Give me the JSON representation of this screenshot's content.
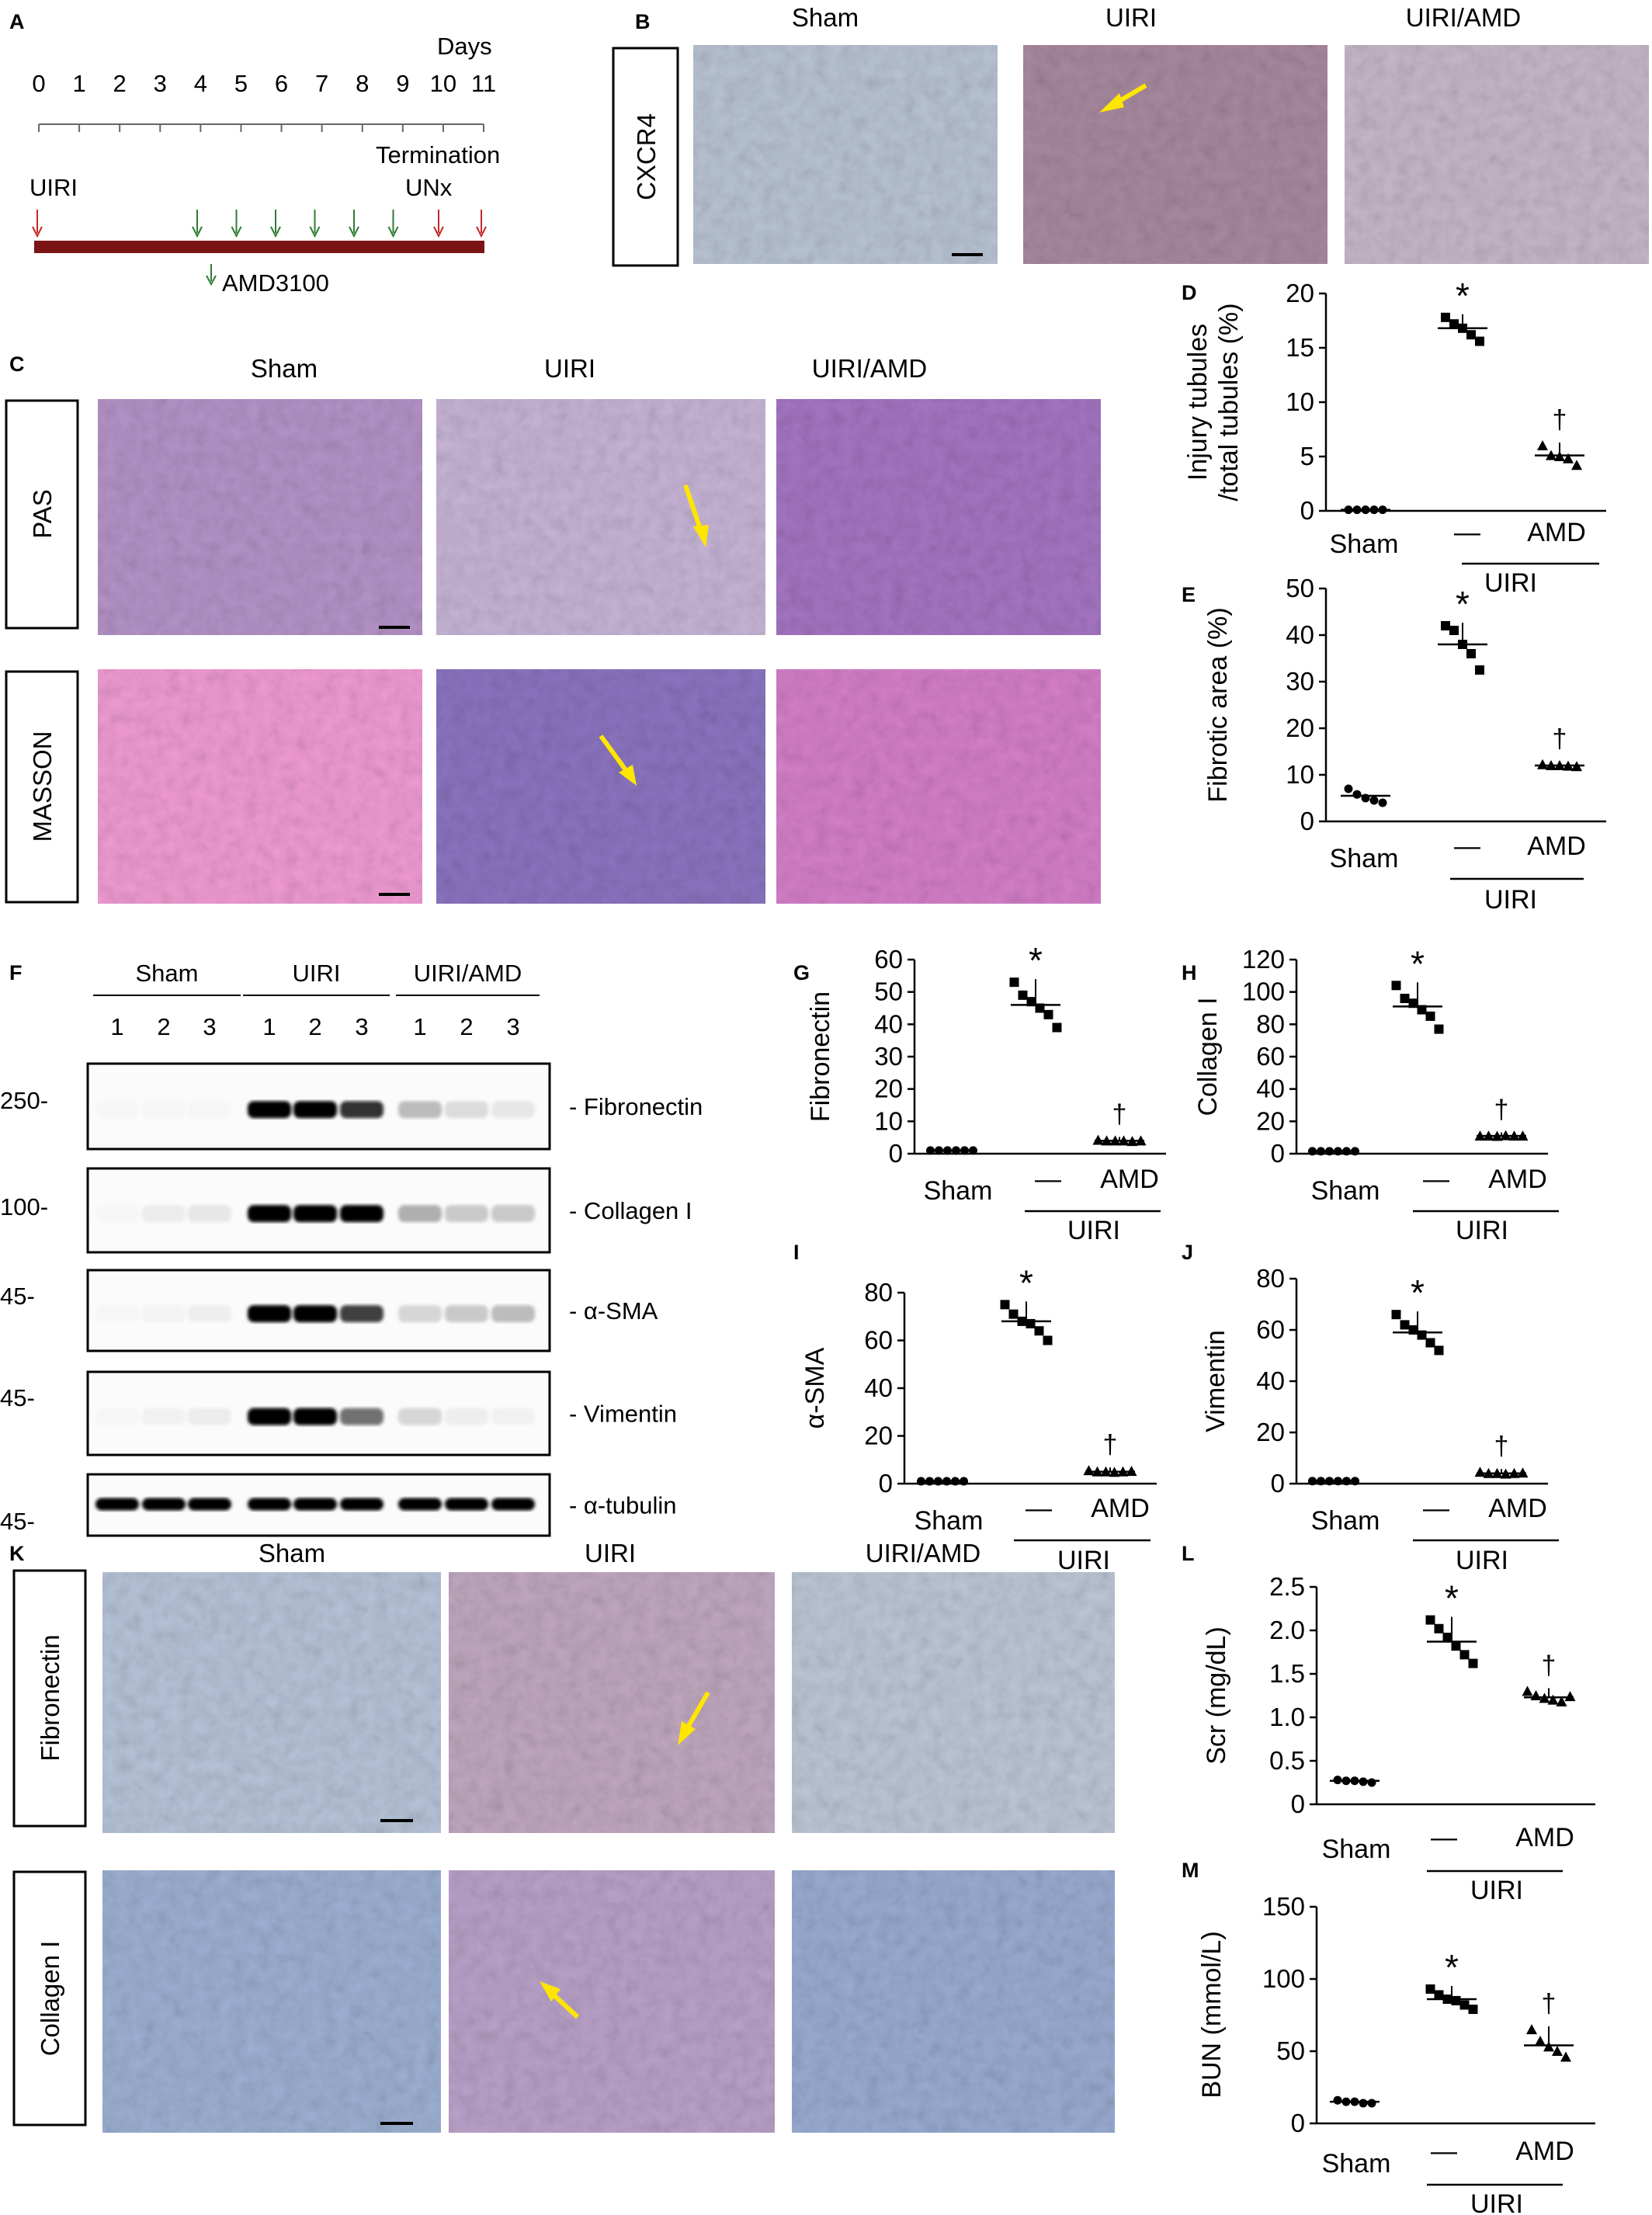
{
  "panel_letters": [
    "A",
    "B",
    "C",
    "D",
    "E",
    "F",
    "G",
    "H",
    "I",
    "J",
    "K",
    "L",
    "M"
  ],
  "panel_a": {
    "days_label": "Days",
    "ticks": [
      "0",
      "1",
      "2",
      "3",
      "4",
      "5",
      "6",
      "7",
      "8",
      "9",
      "10",
      "11"
    ],
    "termination_label": "Termination",
    "uiri_label": "UIRI",
    "unx_label": "UNx",
    "amd_label": "AMD3100",
    "injection_days": [
      4,
      5,
      6,
      7,
      8,
      9
    ]
  },
  "groups": [
    "Sham",
    "UIRI",
    "UIRI/AMD"
  ],
  "panel_b": {
    "row_label": "CXCR4"
  },
  "panel_c": {
    "row_labels": [
      "PAS",
      "MASSON"
    ]
  },
  "panel_k": {
    "row_labels": [
      "Fibronectin",
      "Collagen I"
    ]
  },
  "panel_f": {
    "group_labels": [
      "Sham",
      "UIRI",
      "UIRI/AMD"
    ],
    "lanes": [
      "1",
      "2",
      "3",
      "1",
      "2",
      "3",
      "1",
      "2",
      "3"
    ],
    "markers": [
      "250-",
      "100-",
      "45-",
      "45-",
      "45-"
    ],
    "bands": [
      "- Fibronectin",
      "- Collagen I",
      "- α-SMA",
      "- Vimentin",
      "- α-tubulin"
    ],
    "band_intensity": [
      [
        0.02,
        0.02,
        0.02,
        1.0,
        1.0,
        0.8,
        0.25,
        0.12,
        0.08
      ],
      [
        0.02,
        0.06,
        0.08,
        1.0,
        1.0,
        1.0,
        0.3,
        0.2,
        0.2
      ],
      [
        0.02,
        0.03,
        0.05,
        1.0,
        1.0,
        0.75,
        0.15,
        0.2,
        0.25
      ],
      [
        0.02,
        0.04,
        0.06,
        1.0,
        1.0,
        0.55,
        0.15,
        0.05,
        0.04
      ],
      [
        1.0,
        1.0,
        1.0,
        1.0,
        1.0,
        1.0,
        1.0,
        1.0,
        1.0
      ]
    ]
  },
  "axis_labels": {
    "sham": "Sham",
    "dash": "—",
    "amd": "AMD",
    "uiri": "UIRI",
    "sig_star": "*",
    "sig_dagger": "†"
  },
  "chart_data": [
    {
      "id": "D",
      "type": "scatter",
      "ylabel_lines": [
        "Injury tubules",
        "/total tubules (%)"
      ],
      "ylim": [
        0,
        20
      ],
      "yticks": [
        0,
        5,
        10,
        15,
        20
      ],
      "groups": [
        "Sham",
        "UIRI",
        "UIRI/AMD"
      ],
      "means": [
        0.1,
        16.8,
        5.1
      ],
      "points": [
        [
          0.1,
          0.1,
          0.1,
          0.1,
          0.1
        ],
        [
          17.8,
          17.2,
          16.8,
          16.2,
          15.6
        ],
        [
          6.0,
          5.1,
          5.0,
          4.8,
          4.2
        ]
      ]
    },
    {
      "id": "E",
      "type": "scatter",
      "ylabel_lines": [
        "Fibrotic area (%)"
      ],
      "ylim": [
        0,
        50
      ],
      "yticks": [
        0,
        10,
        20,
        30,
        40,
        50
      ],
      "groups": [
        "Sham",
        "UIRI",
        "UIRI/AMD"
      ],
      "means": [
        5.5,
        38.0,
        12.0
      ],
      "points": [
        [
          7.0,
          5.8,
          5.0,
          4.5,
          4.0
        ],
        [
          42.0,
          41.0,
          38.0,
          36.0,
          32.5
        ],
        [
          12.2,
          12.0,
          12.0,
          11.9,
          11.8
        ]
      ]
    },
    {
      "id": "G",
      "type": "scatter",
      "ylabel_lines": [
        "Fibronectin"
      ],
      "ylim": [
        0,
        60
      ],
      "yticks": [
        0,
        10,
        20,
        30,
        40,
        50,
        60
      ],
      "groups": [
        "Sham",
        "UIRI",
        "UIRI/AMD"
      ],
      "means": [
        1.0,
        46.0,
        4.0
      ],
      "points": [
        [
          1.0,
          1.0,
          1.0,
          1.0,
          1.0,
          1.0
        ],
        [
          53.0,
          49.0,
          47.0,
          45.0,
          43.0,
          39.0
        ],
        [
          4.2,
          4.0,
          4.0,
          4.0,
          3.8,
          4.0
        ]
      ]
    },
    {
      "id": "H",
      "type": "scatter",
      "ylabel_lines": [
        "Collagen I"
      ],
      "ylim": [
        0,
        120
      ],
      "yticks": [
        0,
        20,
        40,
        60,
        80,
        100,
        120
      ],
      "groups": [
        "Sham",
        "UIRI",
        "UIRI/AMD"
      ],
      "means": [
        1.5,
        91.0,
        11.0
      ],
      "points": [
        [
          1.5,
          1.5,
          1.5,
          1.5,
          1.5,
          1.5
        ],
        [
          104.0,
          96.0,
          93.0,
          89.0,
          85.0,
          77.0
        ],
        [
          11.0,
          11.0,
          10.8,
          11.2,
          11.0,
          11.0
        ]
      ]
    },
    {
      "id": "I",
      "type": "scatter",
      "ylabel_lines": [
        "α-SMA"
      ],
      "ylim": [
        0,
        80
      ],
      "yticks": [
        0,
        20,
        40,
        60,
        80
      ],
      "groups": [
        "Sham",
        "UIRI",
        "UIRI/AMD"
      ],
      "means": [
        1.0,
        68.0,
        5.0
      ],
      "points": [
        [
          1.0,
          1.0,
          1.0,
          1.0,
          1.0,
          1.0
        ],
        [
          75.0,
          71.0,
          68.0,
          67.0,
          64.0,
          60.0
        ],
        [
          5.5,
          5.0,
          5.0,
          4.8,
          5.0,
          5.2
        ]
      ]
    },
    {
      "id": "J",
      "type": "scatter",
      "ylabel_lines": [
        "Vimentin"
      ],
      "ylim": [
        0,
        80
      ],
      "yticks": [
        0,
        20,
        40,
        60,
        80
      ],
      "groups": [
        "Sham",
        "UIRI",
        "UIRI/AMD"
      ],
      "means": [
        1.0,
        59.0,
        4.0
      ],
      "points": [
        [
          1.0,
          1.0,
          1.0,
          1.0,
          1.0,
          1.0
        ],
        [
          66.0,
          62.0,
          60.0,
          58.0,
          55.0,
          52.0
        ],
        [
          4.5,
          4.0,
          4.0,
          3.8,
          4.0,
          4.2
        ]
      ]
    },
    {
      "id": "L",
      "type": "scatter",
      "ylabel_lines": [
        "Scr (mg/dL)"
      ],
      "ylim": [
        0,
        2.5
      ],
      "yticks": [
        0,
        0.5,
        1.0,
        1.5,
        2.0,
        2.5
      ],
      "ytick_labels": [
        "0",
        "0.5",
        "1.0",
        "1.5",
        "2.0",
        "2.5"
      ],
      "groups": [
        "Sham",
        "UIRI",
        "UIRI/AMD"
      ],
      "means": [
        0.27,
        1.87,
        1.23
      ],
      "points": [
        [
          0.28,
          0.27,
          0.27,
          0.26,
          0.25
        ],
        [
          2.12,
          2.02,
          1.92,
          1.82,
          1.72,
          1.62
        ],
        [
          1.3,
          1.25,
          1.22,
          1.2,
          1.18,
          1.24
        ]
      ]
    },
    {
      "id": "M",
      "type": "scatter",
      "ylabel_lines": [
        "BUN (mmol/L)"
      ],
      "ylim": [
        0,
        150
      ],
      "yticks": [
        0,
        50,
        100,
        150
      ],
      "groups": [
        "Sham",
        "UIRI",
        "UIRI/AMD"
      ],
      "means": [
        15.0,
        86.0,
        54.0
      ],
      "points": [
        [
          16.0,
          15.0,
          15.0,
          14.0,
          14.0
        ],
        [
          93.0,
          89.0,
          86.0,
          85.0,
          82.0,
          79.0
        ],
        [
          65.0,
          57.0,
          53.0,
          50.0,
          46.0
        ]
      ]
    }
  ]
}
